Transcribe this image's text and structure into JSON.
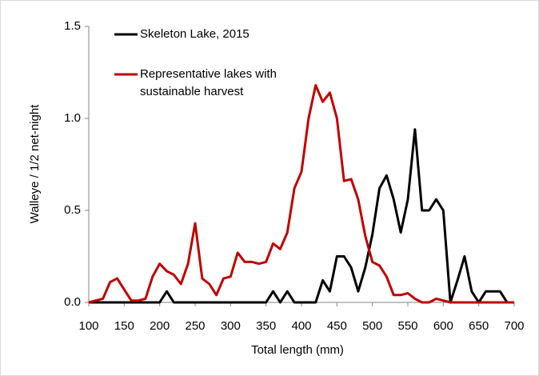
{
  "chart_data": {
    "type": "line",
    "x_label": "Total length (mm)",
    "y_label": "Walleye / 1/2 net-night",
    "x": [
      100,
      110,
      120,
      130,
      140,
      150,
      160,
      170,
      180,
      190,
      200,
      210,
      220,
      230,
      240,
      250,
      260,
      270,
      280,
      290,
      300,
      310,
      320,
      330,
      340,
      350,
      360,
      370,
      380,
      390,
      400,
      410,
      420,
      430,
      440,
      450,
      460,
      470,
      480,
      490,
      500,
      510,
      520,
      530,
      540,
      550,
      560,
      570,
      580,
      590,
      600,
      610,
      620,
      630,
      640,
      650,
      660,
      670,
      680,
      690,
      700
    ],
    "series": [
      {
        "name": "Skeleton Lake, 2015",
        "color": "#000000",
        "values": [
          0,
          0,
          0,
          0,
          0,
          0,
          0,
          0,
          0,
          0,
          0,
          0.06,
          0,
          0,
          0,
          0,
          0,
          0,
          0,
          0,
          0,
          0,
          0,
          0,
          0,
          0,
          0.06,
          0,
          0.06,
          0,
          0,
          0,
          0,
          0.12,
          0.06,
          0.25,
          0.25,
          0.19,
          0.06,
          0.19,
          0.37,
          0.62,
          0.69,
          0.56,
          0.38,
          0.56,
          0.94,
          0.5,
          0.5,
          0.56,
          0.5,
          0,
          0.12,
          0.25,
          0.06,
          0,
          0.06,
          0.06,
          0.06,
          0,
          null
        ]
      },
      {
        "name": "Representative lakes with sustainable harvest",
        "color": "#c00000",
        "values": [
          0,
          0.01,
          0.02,
          0.11,
          0.13,
          0.07,
          0.01,
          0.01,
          0.02,
          0.14,
          0.21,
          0.17,
          0.15,
          0.1,
          0.21,
          0.43,
          0.13,
          0.1,
          0.04,
          0.13,
          0.14,
          0.27,
          0.22,
          0.22,
          0.21,
          0.22,
          0.32,
          0.29,
          0.38,
          0.62,
          0.71,
          1.0,
          1.18,
          1.09,
          1.14,
          1.0,
          0.66,
          0.67,
          0.56,
          0.36,
          0.22,
          0.2,
          0.14,
          0.04,
          0.04,
          0.05,
          0.02,
          0,
          0,
          0.02,
          0.01,
          0,
          0,
          0,
          0,
          0,
          0,
          0,
          0,
          0,
          0
        ]
      }
    ],
    "xlim": [
      100,
      700
    ],
    "ylim": [
      0,
      1.5
    ],
    "xticks": [
      100,
      150,
      200,
      250,
      300,
      350,
      400,
      450,
      500,
      550,
      600,
      650,
      700
    ],
    "yticks": [
      {
        "value": 0,
        "label": "0.0"
      },
      {
        "value": 0.5,
        "label": "0.5"
      },
      {
        "value": 1,
        "label": "1.0"
      },
      {
        "value": 1.5,
        "label": "1.5"
      }
    ],
    "grid": false
  }
}
